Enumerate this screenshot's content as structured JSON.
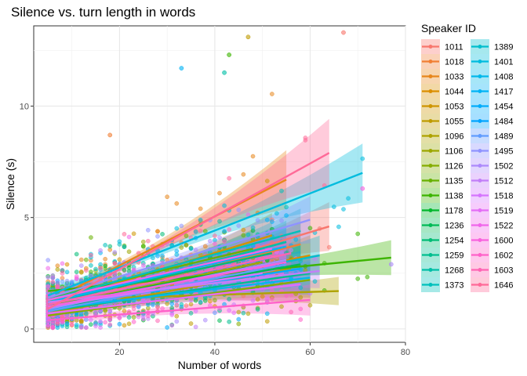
{
  "chart_data": {
    "type": "scatter",
    "title": "Silence vs. turn length in words",
    "xlabel": "Number of words",
    "ylabel": "Silence (s)",
    "xlim": [
      2,
      80
    ],
    "ylim": [
      -0.6,
      13.6
    ],
    "xticks": [
      20,
      40,
      60,
      80
    ],
    "yticks": [
      0,
      5,
      10
    ],
    "grid": true,
    "legend_title": "Speaker ID",
    "legend_position": "right",
    "series": [
      {
        "name": "1011",
        "color": "#F8766D",
        "fit": [
          [
            5,
            0.8
          ],
          [
            64,
            4.6
          ]
        ]
      },
      {
        "name": "1018",
        "color": "#F17F34",
        "fit": [
          [
            5,
            1.0
          ],
          [
            58,
            3.8
          ]
        ]
      },
      {
        "name": "1033",
        "color": "#E7861B",
        "fit": [
          [
            5,
            1.2
          ],
          [
            55,
            6.7
          ]
        ]
      },
      {
        "name": "1044",
        "color": "#DB8E00",
        "fit": [
          [
            5,
            0.9
          ],
          [
            60,
            3.3
          ]
        ]
      },
      {
        "name": "1053",
        "color": "#CE9500",
        "fit": [
          [
            5,
            1.1
          ],
          [
            52,
            4.2
          ]
        ]
      },
      {
        "name": "1055",
        "color": "#BF9B00",
        "fit": [
          [
            5,
            0.7
          ],
          [
            56,
            2.7
          ]
        ]
      },
      {
        "name": "1096",
        "color": "#AEA200",
        "fit": [
          [
            5,
            1.3
          ],
          [
            66,
            1.7
          ]
        ]
      },
      {
        "name": "1106",
        "color": "#9CA700",
        "fit": [
          [
            5,
            1.0
          ],
          [
            50,
            3.0
          ]
        ]
      },
      {
        "name": "1126",
        "color": "#85AD00",
        "fit": [
          [
            5,
            0.6
          ],
          [
            60,
            2.2
          ]
        ]
      },
      {
        "name": "1135",
        "color": "#68B100",
        "fit": [
          [
            5,
            1.4
          ],
          [
            48,
            3.6
          ]
        ]
      },
      {
        "name": "1138",
        "color": "#3CB400",
        "fit": [
          [
            5,
            1.7
          ],
          [
            77,
            3.2
          ]
        ]
      },
      {
        "name": "1178",
        "color": "#00B72D",
        "fit": [
          [
            5,
            1.0
          ],
          [
            55,
            3.1
          ]
        ]
      },
      {
        "name": "1236",
        "color": "#00BA56",
        "fit": [
          [
            5,
            0.9
          ],
          [
            58,
            2.9
          ]
        ]
      },
      {
        "name": "1254",
        "color": "#00BC75",
        "fit": [
          [
            5,
            1.2
          ],
          [
            52,
            3.4
          ]
        ]
      },
      {
        "name": "1259",
        "color": "#00BE8F",
        "fit": [
          [
            5,
            0.8
          ],
          [
            60,
            2.5
          ]
        ]
      },
      {
        "name": "1268",
        "color": "#00BFA6",
        "fit": [
          [
            5,
            1.1
          ],
          [
            55,
            3.9
          ]
        ]
      },
      {
        "name": "1373",
        "color": "#00C0BB",
        "fit": [
          [
            5,
            1.3
          ],
          [
            58,
            4.4
          ]
        ]
      },
      {
        "name": "1389",
        "color": "#00BECD",
        "fit": [
          [
            5,
            1.0
          ],
          [
            62,
            3.3
          ]
        ]
      },
      {
        "name": "1401",
        "color": "#00BCDE",
        "fit": [
          [
            5,
            1.5
          ],
          [
            71,
            7.0
          ]
        ]
      },
      {
        "name": "1408",
        "color": "#00B8EB",
        "fit": [
          [
            5,
            0.9
          ],
          [
            60,
            2.3
          ]
        ]
      },
      {
        "name": "1417",
        "color": "#00B3F5",
        "fit": [
          [
            5,
            1.2
          ],
          [
            55,
            3.7
          ]
        ]
      },
      {
        "name": "1454",
        "color": "#00ACFC",
        "fit": [
          [
            5,
            1.0
          ],
          [
            58,
            2.7
          ]
        ]
      },
      {
        "name": "1484",
        "color": "#00A4FF",
        "fit": [
          [
            5,
            1.1
          ],
          [
            52,
            3.2
          ]
        ]
      },
      {
        "name": "1489",
        "color": "#619CFF",
        "fit": [
          [
            5,
            0.8
          ],
          [
            55,
            2.9
          ]
        ]
      },
      {
        "name": "1495",
        "color": "#8F93FF",
        "fit": [
          [
            5,
            1.4
          ],
          [
            60,
            4.9
          ]
        ]
      },
      {
        "name": "1502",
        "color": "#AC89FC",
        "fit": [
          [
            5,
            0.9
          ],
          [
            55,
            3.1
          ]
        ]
      },
      {
        "name": "1512",
        "color": "#C27FF8",
        "fit": [
          [
            5,
            1.2
          ],
          [
            62,
            2.6
          ]
        ]
      },
      {
        "name": "1518",
        "color": "#D575FE",
        "fit": [
          [
            5,
            1.0
          ],
          [
            50,
            2.5
          ]
        ]
      },
      {
        "name": "1519",
        "color": "#E46DF6",
        "fit": [
          [
            5,
            0.7
          ],
          [
            58,
            2.0
          ]
        ]
      },
      {
        "name": "1522",
        "color": "#F066EA",
        "fit": [
          [
            5,
            1.3
          ],
          [
            52,
            3.6
          ]
        ]
      },
      {
        "name": "1600",
        "color": "#F962DD",
        "fit": [
          [
            5,
            1.0
          ],
          [
            55,
            3.0
          ]
        ]
      },
      {
        "name": "1602",
        "color": "#FF61C9",
        "fit": [
          [
            5,
            0.4
          ],
          [
            60,
            1.3
          ]
        ]
      },
      {
        "name": "1603",
        "color": "#FF64B3",
        "fit": [
          [
            5,
            1.1
          ],
          [
            56,
            3.4
          ]
        ]
      },
      {
        "name": "1646",
        "color": "#FF6A98",
        "fit": [
          [
            5,
            0.9
          ],
          [
            64,
            7.9
          ]
        ]
      }
    ],
    "notable_points": [
      {
        "x": 67,
        "y": 13.3
      },
      {
        "x": 47,
        "y": 13.1
      },
      {
        "x": 43,
        "y": 12.3
      },
      {
        "x": 42,
        "y": 11.5
      },
      {
        "x": 33,
        "y": 11.7
      },
      {
        "x": 77,
        "y": 2.9
      },
      {
        "x": 71,
        "y": 6.3
      },
      {
        "x": 18,
        "y": 8.7
      }
    ]
  }
}
